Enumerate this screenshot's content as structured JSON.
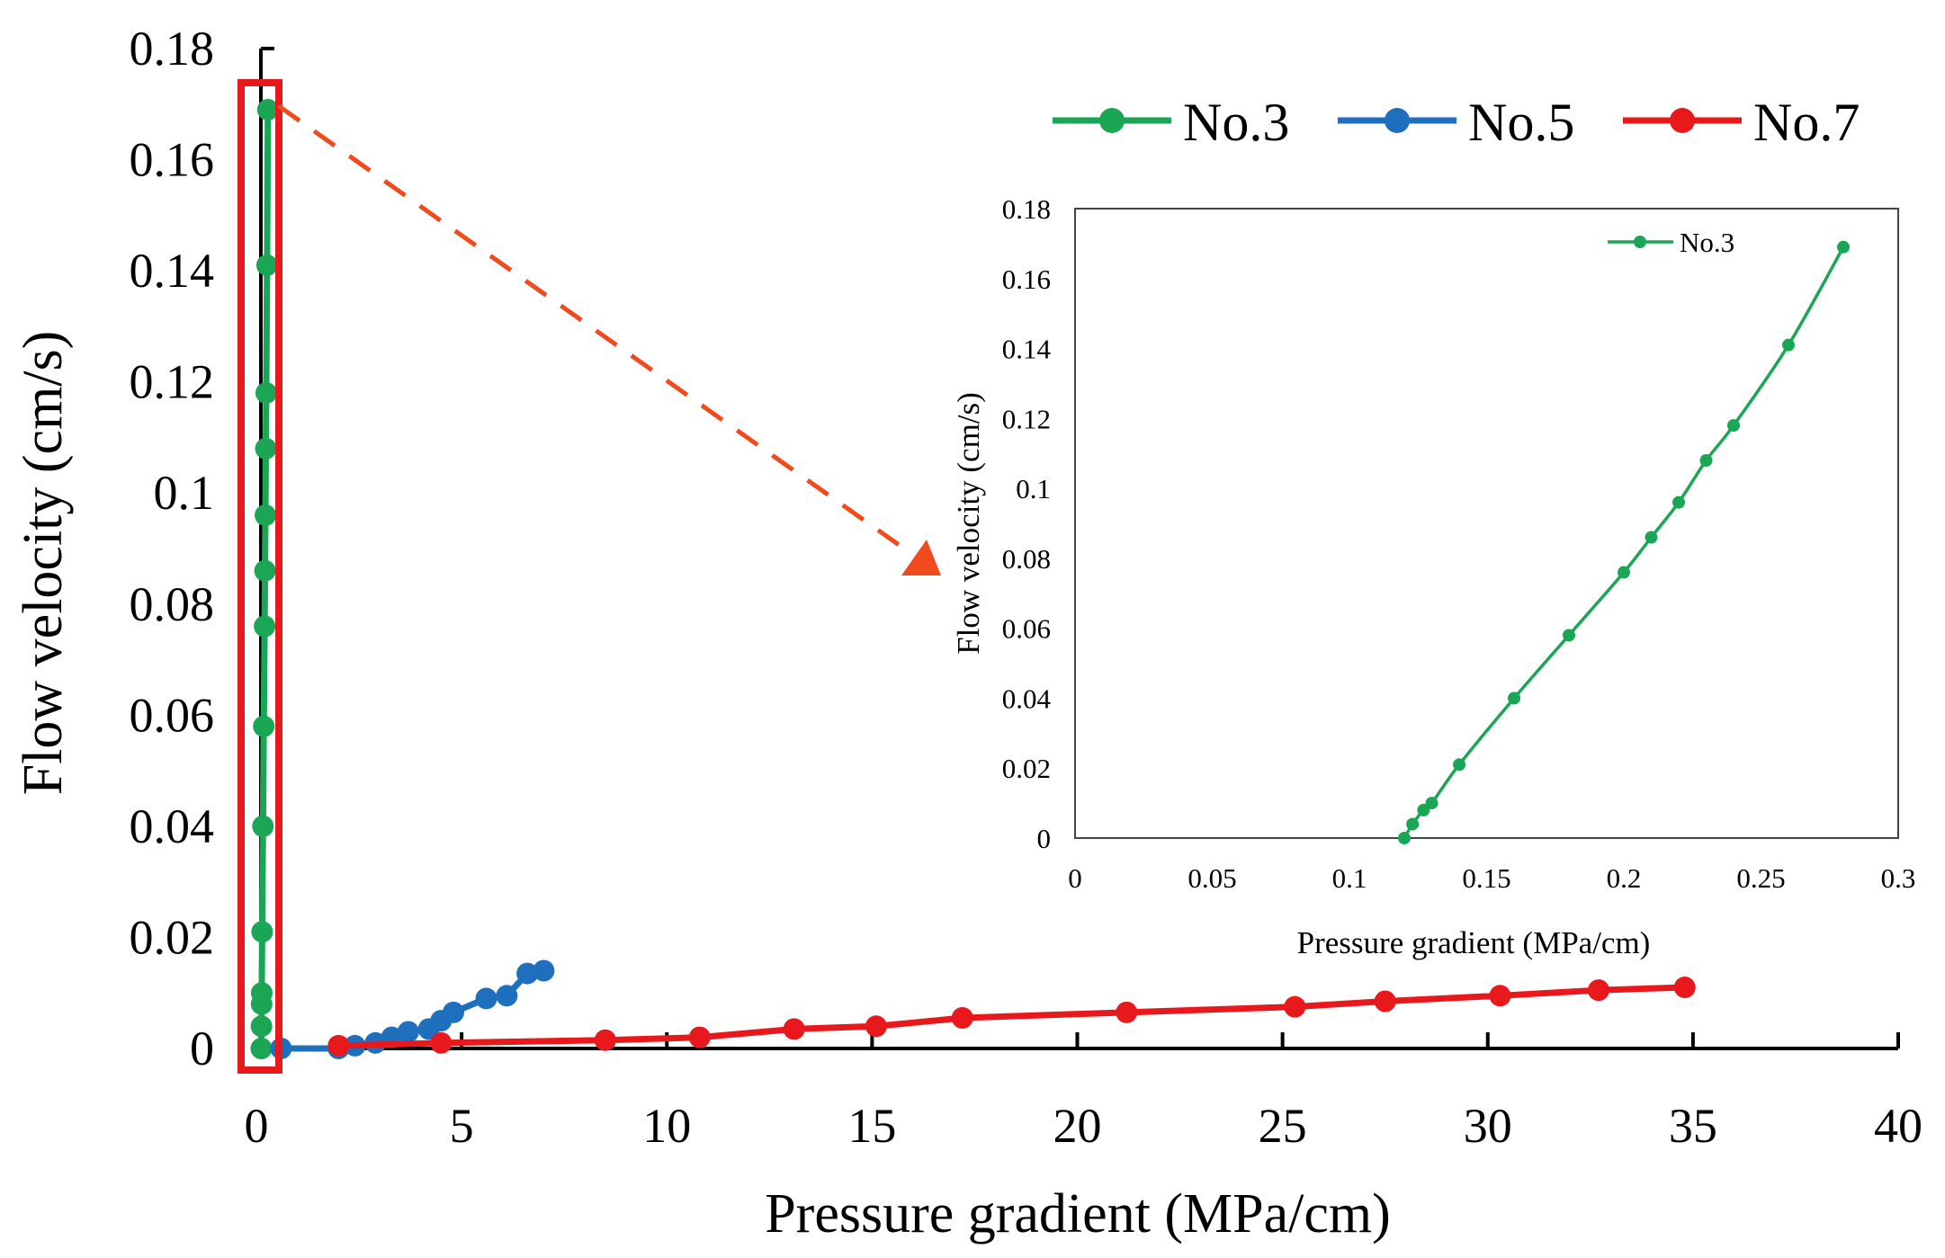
{
  "chart_data": [
    {
      "type": "line",
      "title": "",
      "xlabel": "Pressure gradient (MPa/cm)",
      "ylabel": "Flow velocity (cm/s)",
      "xlim": [
        0,
        40
      ],
      "ylim": [
        0,
        0.18
      ],
      "x_ticks": [
        "0",
        "5",
        "10",
        "15",
        "20",
        "25",
        "30",
        "35",
        "40"
      ],
      "y_ticks": [
        "0",
        "0.02",
        "0.04",
        "0.06",
        "0.08",
        "0.1",
        "0.12",
        "0.14",
        "0.16",
        "0.18"
      ],
      "grid": false,
      "legend_position": "top-right",
      "series": [
        {
          "name": "No.3",
          "color": "#1aa655",
          "x": [
            0.12,
            0.123,
            0.127,
            0.13,
            0.14,
            0.16,
            0.18,
            0.2,
            0.21,
            0.22,
            0.23,
            0.24,
            0.26,
            0.28
          ],
          "y": [
            0,
            0.004,
            0.008,
            0.01,
            0.021,
            0.04,
            0.058,
            0.076,
            0.086,
            0.096,
            0.108,
            0.118,
            0.141,
            0.169
          ]
        },
        {
          "name": "No.5",
          "color": "#1f6fbf",
          "x": [
            0.6,
            2.0,
            2.4,
            2.9,
            3.3,
            3.7,
            4.2,
            4.5,
            4.8,
            5.6,
            6.1,
            6.6,
            7.0
          ],
          "y": [
            0,
            0,
            0.0005,
            0.001,
            0.002,
            0.003,
            0.0035,
            0.005,
            0.0065,
            0.009,
            0.0095,
            0.0135,
            0.014
          ]
        },
        {
          "name": "No.7",
          "color": "#e8191c",
          "x": [
            2.0,
            4.5,
            8.5,
            10.8,
            13.1,
            15.1,
            17.2,
            21.2,
            25.3,
            27.5,
            30.3,
            32.7,
            34.8
          ],
          "y": [
            0.0005,
            0.001,
            0.0015,
            0.002,
            0.0035,
            0.004,
            0.0055,
            0.0065,
            0.0075,
            0.0085,
            0.0095,
            0.0105,
            0.011
          ]
        }
      ],
      "annotations": [
        {
          "type": "highlight-box",
          "color": "#e8191c",
          "description": "zoomed region around x=0 for No.3"
        },
        {
          "type": "dashed-arrow",
          "color": "#f04a1d",
          "description": "points from highlight box to inset chart"
        }
      ]
    },
    {
      "type": "line",
      "title": "",
      "xlabel": "Pressure gradient (MPa/cm)",
      "ylabel": "Flow velocity (cm/s)",
      "xlim": [
        0,
        0.3
      ],
      "ylim": [
        0,
        0.18
      ],
      "x_ticks": [
        "0",
        "0.05",
        "0.1",
        "0.15",
        "0.2",
        "0.25",
        "0.3"
      ],
      "y_ticks": [
        "0",
        "0.02",
        "0.04",
        "0.06",
        "0.08",
        "0.1",
        "0.12",
        "0.14",
        "0.16",
        "0.18"
      ],
      "grid": false,
      "legend_position": "top-right",
      "series": [
        {
          "name": "No.3",
          "color": "#1aa655",
          "x": [
            0.12,
            0.123,
            0.127,
            0.13,
            0.14,
            0.16,
            0.18,
            0.2,
            0.21,
            0.22,
            0.23,
            0.24,
            0.26,
            0.28
          ],
          "y": [
            0,
            0.004,
            0.008,
            0.01,
            0.021,
            0.04,
            0.058,
            0.076,
            0.086,
            0.096,
            0.108,
            0.118,
            0.141,
            0.169
          ]
        }
      ]
    }
  ]
}
